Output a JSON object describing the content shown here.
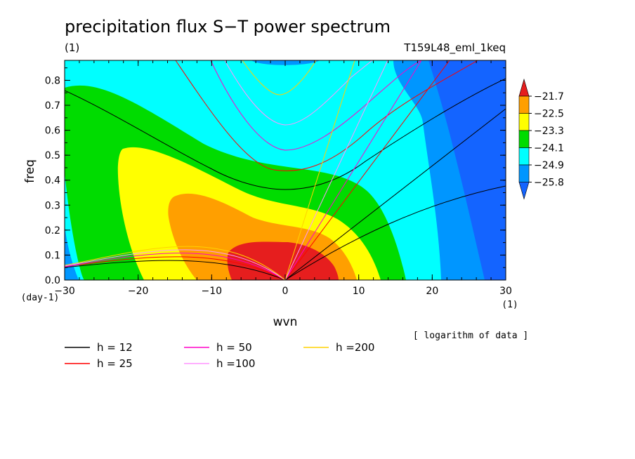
{
  "chart_data": {
    "type": "heatmap",
    "title": "precipitation flux S−T power spectrum",
    "subtitle_left": "(1)",
    "subtitle_right": "T159L48_eml_1keq",
    "xlabel": "wvn",
    "ylabel": "freq",
    "x_unit": "(1)",
    "y_unit": "(day-1)",
    "xlim": [
      -30,
      30
    ],
    "ylim": [
      0,
      0.88
    ],
    "x_ticks": [
      "-30",
      "-20",
      "-10",
      "0",
      "10",
      "20",
      "30"
    ],
    "y_ticks": [
      "0.0",
      "0.1",
      "0.2",
      "0.3",
      "0.4",
      "0.5",
      "0.6",
      "0.7",
      "0.8"
    ],
    "note": "[ logarithm of data ]",
    "colorbar": {
      "levels": [
        "-21.7",
        "-22.5",
        "-23.3",
        "-24.1",
        "-24.9",
        "-25.8"
      ],
      "colors": [
        "#e61e1e",
        "#ff9f00",
        "#ffff00",
        "#00dc00",
        "#00ffff",
        "#0096ff",
        "#1464ff"
      ]
    },
    "field_regions": [
      {
        "level": "<=-25.8",
        "color": "#1464ff",
        "desc": "background east"
      },
      {
        "level": "-25.8",
        "color": "#0096ff"
      },
      {
        "level": "-24.9",
        "color": "#00ffff"
      },
      {
        "level": "-24.1",
        "color": "#00dc00"
      },
      {
        "level": "-23.3",
        "color": "#ffff00"
      },
      {
        "level": "-22.5",
        "color": "#ff9f00"
      },
      {
        "level": ">=-21.7",
        "color": "#e61e1e"
      }
    ],
    "series": [
      {
        "name": "h = 12",
        "color": "#000000"
      },
      {
        "name": "h = 25",
        "color": "#ff0000"
      },
      {
        "name": "h = 50",
        "color": "#ff00c8"
      },
      {
        "name": "h =100",
        "color": "#ff96ff"
      },
      {
        "name": "h =200",
        "color": "#ffd200"
      }
    ]
  }
}
